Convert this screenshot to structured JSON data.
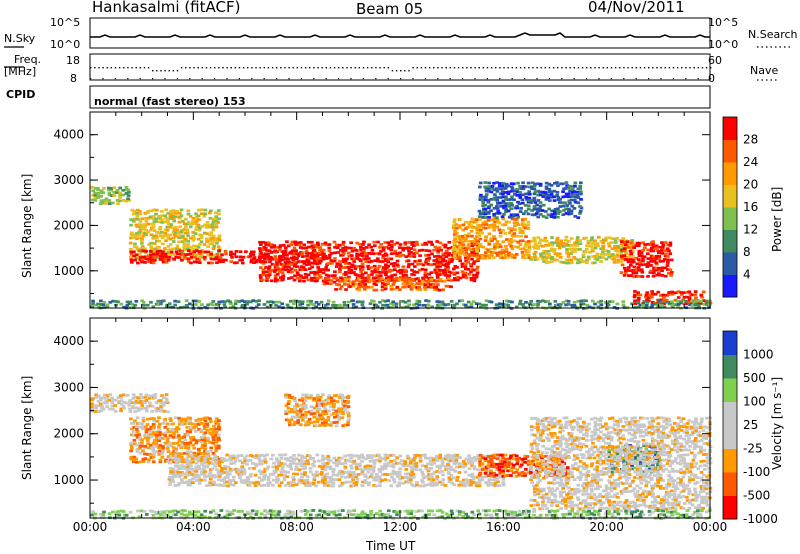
{
  "header": {
    "station": "Hankasalmi (fitACF)",
    "beam": "Beam 05",
    "date": "04/Nov/2011"
  },
  "top_panels": {
    "nsky_label": "N.Sky",
    "nsky_ticks": [
      "10^5",
      "10^0"
    ],
    "nsearch_label": "N.Search",
    "nsearch_ticks": [
      "10^5",
      "10^0"
    ],
    "freq_label": "Freq.",
    "freq_unit": "[MHz]",
    "freq_ticks": [
      "18",
      "8"
    ],
    "nave_label": "Nave",
    "nave_ticks": [
      "60",
      "0"
    ],
    "cpid_label": "CPID",
    "cpid_value": "normal (fast stereo) 153"
  },
  "colors": {
    "power_scale": [
      "#1a1aff",
      "#2a5aa8",
      "#3f8a5e",
      "#7fbf4f",
      "#e8c020",
      "#ff9a00",
      "#ff5a00",
      "#ff0000"
    ],
    "velocity_scale": [
      "#ff0000",
      "#ff5a00",
      "#ff9a00",
      "#c8c8c8",
      "#c8c8c8",
      "#7fd04f",
      "#3f8a5e",
      "#1a3fd0"
    ],
    "ground_scatter": "#c0c0c0"
  },
  "chart_data": [
    {
      "type": "heatmap",
      "panel": "power",
      "ylabel": "Slant Range [km]",
      "yticks": [
        "4000",
        "3000",
        "2000",
        "1000"
      ],
      "ylim": [
        180,
        4500
      ],
      "xlim_hours": [
        0,
        24
      ],
      "colorbar": {
        "label": "Power [dB]",
        "ticks": [
          "28",
          "24",
          "20",
          "16",
          "12",
          "8",
          "4"
        ],
        "range": [
          0,
          32
        ]
      },
      "bands": [
        {
          "t0": 0.0,
          "t1": 1.5,
          "r0": 2500,
          "r1": 2900,
          "level": 3
        },
        {
          "t0": 1.5,
          "t1": 5.0,
          "r0": 1300,
          "r1": 2400,
          "level": 4
        },
        {
          "t0": 1.5,
          "t1": 9.0,
          "r0": 1200,
          "r1": 1500,
          "level": 7
        },
        {
          "t0": 6.5,
          "t1": 15.0,
          "r0": 800,
          "r1": 1700,
          "level": 7
        },
        {
          "t0": 9.0,
          "t1": 14.0,
          "r0": 600,
          "r1": 900,
          "level": 6
        },
        {
          "t0": 14.0,
          "t1": 17.0,
          "r0": 1300,
          "r1": 2200,
          "level": 5
        },
        {
          "t0": 17.0,
          "t1": 21.0,
          "r0": 1200,
          "r1": 1800,
          "level": 4
        },
        {
          "t0": 20.5,
          "t1": 22.5,
          "r0": 900,
          "r1": 1700,
          "level": 7
        },
        {
          "t0": 15.0,
          "t1": 19.0,
          "r0": 2200,
          "r1": 3000,
          "level": 1
        },
        {
          "t0": 21.0,
          "t1": 24.0,
          "r0": 300,
          "r1": 600,
          "level": 7
        },
        {
          "t0": 0.0,
          "t1": 24.0,
          "r0": 200,
          "r1": 400,
          "level": 2
        }
      ]
    },
    {
      "type": "heatmap",
      "panel": "velocity",
      "ylabel": "Slant Range [km]",
      "yticks": [
        "4000",
        "3000",
        "2000",
        "1000"
      ],
      "ylim": [
        180,
        4500
      ],
      "xlim_hours": [
        0,
        24
      ],
      "xticks": [
        "00:00",
        "04:00",
        "08:00",
        "12:00",
        "16:00",
        "20:00",
        "00:00"
      ],
      "xlabel": "Time UT",
      "colorbar": {
        "label": "Velocity [m s⁻¹]",
        "ticks": [
          "1000",
          "500",
          "100",
          "25",
          "-25",
          "-100",
          "-500",
          "-1000"
        ],
        "range": [
          -1000,
          1000
        ]
      },
      "bands": [
        {
          "t0": 0.0,
          "t1": 3.0,
          "r0": 2500,
          "r1": 2900,
          "level": 3
        },
        {
          "t0": 1.5,
          "t1": 5.0,
          "r0": 1400,
          "r1": 2400,
          "level": 2
        },
        {
          "t0": 3.0,
          "t1": 16.0,
          "r0": 900,
          "r1": 1600,
          "level": 3
        },
        {
          "t0": 7.5,
          "t1": 10.0,
          "r0": 2200,
          "r1": 2900,
          "level": 2
        },
        {
          "t0": 15.0,
          "t1": 18.5,
          "r0": 1100,
          "r1": 1600,
          "level": 1
        },
        {
          "t0": 20.0,
          "t1": 22.0,
          "r0": 1200,
          "r1": 1800,
          "level": 6
        },
        {
          "t0": 17.0,
          "t1": 24.0,
          "r0": 400,
          "r1": 2400,
          "level": 3
        },
        {
          "t0": 0.0,
          "t1": 24.0,
          "r0": 200,
          "r1": 400,
          "level": 5
        }
      ]
    }
  ]
}
